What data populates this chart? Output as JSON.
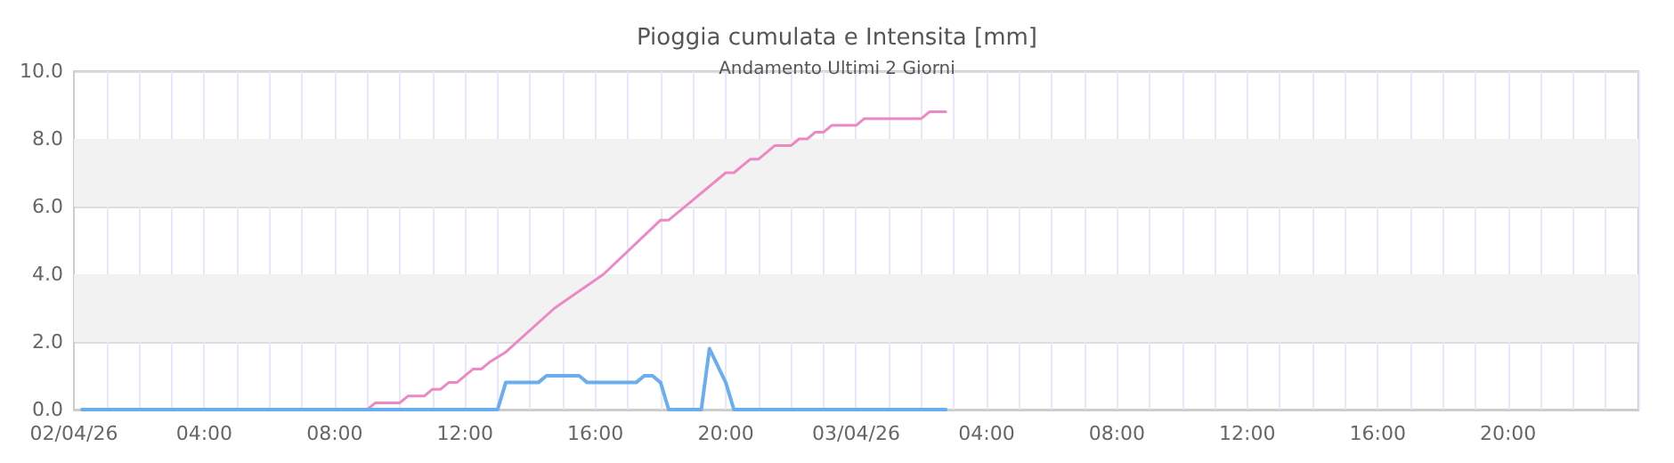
{
  "chart_data": {
    "type": "line",
    "title": "Pioggia cumulata e Intensita [mm]",
    "subtitle": "Andamento Ultimi 2 Giorni",
    "series": [
      {
        "color": "#ee88c4",
        "x": [
          "--04-02T00:15",
          "--04-02T09:00",
          "--04-02T09:15",
          "--04-02T10:00",
          "--04-02T10:15",
          "--04-02T10:45",
          "--04-02T11:00",
          "--04-02T11:15",
          "--04-02T11:30",
          "--04-02T11:45",
          "--04-02T12:15",
          "--04-02T12:30",
          "--04-02T12:45",
          "--04-02T13:15",
          "--04-02T14:45",
          "--04-02T16:15",
          "--04-02T18:00",
          "--04-02T18:15",
          "--04-02T20:00",
          "--04-02T20:15",
          "--04-02T20:45",
          "--04-02T21:00",
          "--04-02T21:30",
          "--04-02T22:00",
          "--04-02T22:15",
          "--04-02T22:30",
          "--04-02T22:45",
          "--04-02T23:00",
          "--04-02T23:15",
          "--04-03T00:00",
          "--04-03T00:15",
          "--04-03T02:00",
          "--04-03T02:15",
          "--04-03T02:45"
        ],
        "values": [
          0,
          0,
          0.2,
          0.2,
          0.4,
          0.4,
          0.6,
          0.6,
          0.8,
          0.8,
          1.2,
          1.2,
          1.4,
          1.7,
          3.0,
          4.0,
          5.6,
          5.6,
          7.0,
          7.0,
          7.4,
          7.4,
          7.8,
          7.8,
          8.0,
          8.0,
          8.2,
          8.2,
          8.4,
          8.4,
          8.6,
          8.6,
          8.8,
          8.8
        ]
      },
      {
        "color": "#6aaef0",
        "x": [
          "--04-02T00:15",
          "--04-02T13:00",
          "--04-02T13:15",
          "--04-02T14:15",
          "--04-02T14:30",
          "--04-02T15:30",
          "--04-02T15:45",
          "--04-02T17:15",
          "--04-02T17:30",
          "--04-02T17:45",
          "--04-02T18:00",
          "--04-02T18:15",
          "--04-02T19:15",
          "--04-02T19:30",
          "--04-02T20:00",
          "--04-02T20:15",
          "--04-03T02:45"
        ],
        "values": [
          0,
          0,
          0.8,
          0.8,
          1.0,
          1.0,
          0.8,
          0.8,
          1.0,
          1.0,
          0.8,
          0,
          0,
          1.8,
          0.8,
          0,
          0
        ]
      }
    ],
    "xlim": [
      "--04-02T00:00",
      "--04-04T00:00"
    ],
    "xticks": [
      {
        "value": "--04-02T00:00",
        "label": "02/04/26"
      },
      {
        "value": "--04-02T01:00",
        "label": null
      },
      {
        "value": "--04-02T02:00",
        "label": null
      },
      {
        "value": "--04-02T03:00",
        "label": null
      },
      {
        "value": "--04-02T04:00",
        "label": "04:00"
      },
      {
        "value": "--04-02T05:00",
        "label": null
      },
      {
        "value": "--04-02T06:00",
        "label": null
      },
      {
        "value": "--04-02T07:00",
        "label": null
      },
      {
        "value": "--04-02T08:00",
        "label": "08:00"
      },
      {
        "value": "--04-02T09:00",
        "label": null
      },
      {
        "value": "--04-02T10:00",
        "label": null
      },
      {
        "value": "--04-02T11:00",
        "label": null
      },
      {
        "value": "--04-02T12:00",
        "label": "12:00"
      },
      {
        "value": "--04-02T13:00",
        "label": null
      },
      {
        "value": "--04-02T14:00",
        "label": null
      },
      {
        "value": "--04-02T15:00",
        "label": null
      },
      {
        "value": "--04-02T16:00",
        "label": "16:00"
      },
      {
        "value": "--04-02T17:00",
        "label": null
      },
      {
        "value": "--04-02T18:00",
        "label": null
      },
      {
        "value": "--04-02T19:00",
        "label": null
      },
      {
        "value": "--04-02T20:00",
        "label": "20:00"
      },
      {
        "value": "--04-02T21:00",
        "label": null
      },
      {
        "value": "--04-02T22:00",
        "label": null
      },
      {
        "value": "--04-02T23:00",
        "label": null
      },
      {
        "value": "--04-03T00:00",
        "label": "03/04/26"
      },
      {
        "value": "--04-03T01:00",
        "label": null
      },
      {
        "value": "--04-03T02:00",
        "label": null
      },
      {
        "value": "--04-03T03:00",
        "label": null
      },
      {
        "value": "--04-03T04:00",
        "label": "04:00"
      },
      {
        "value": "--04-03T05:00",
        "label": null
      },
      {
        "value": "--04-03T06:00",
        "label": null
      },
      {
        "value": "--04-03T07:00",
        "label": null
      },
      {
        "value": "--04-03T08:00",
        "label": "08:00"
      },
      {
        "value": "--04-03T09:00",
        "label": null
      },
      {
        "value": "--04-03T10:00",
        "label": null
      },
      {
        "value": "--04-03T11:00",
        "label": null
      },
      {
        "value": "--04-03T12:00",
        "label": "12:00"
      },
      {
        "value": "--04-03T13:00",
        "label": null
      },
      {
        "value": "--04-03T14:00",
        "label": null
      },
      {
        "value": "--04-03T15:00",
        "label": null
      },
      {
        "value": "--04-03T16:00",
        "label": "16:00"
      },
      {
        "value": "--04-03T17:00",
        "label": null
      },
      {
        "value": "--04-03T18:00",
        "label": null
      },
      {
        "value": "--04-03T19:00",
        "label": null
      },
      {
        "value": "--04-03T20:00",
        "label": "20:00"
      },
      {
        "value": "--04-03T21:00",
        "label": null
      },
      {
        "value": "--04-03T22:00",
        "label": null
      },
      {
        "value": "--04-03T23:00",
        "label": null
      }
    ],
    "ylim": [
      0,
      10
    ],
    "yticks": [
      {
        "value": 0,
        "label": "0.0"
      },
      {
        "value": 2,
        "label": "2.0"
      },
      {
        "value": 4,
        "label": "4.0"
      },
      {
        "value": 6,
        "label": "6.0"
      },
      {
        "value": 8,
        "label": "8.0"
      },
      {
        "value": 10,
        "label": "10.0"
      }
    ],
    "bands": [
      {
        "axis": "y",
        "from": 2,
        "to": 4,
        "color": "#f2f2f2"
      },
      {
        "axis": "y",
        "from": 6,
        "to": 8,
        "color": "#f2f2f2"
      }
    ],
    "grid": true,
    "marker": "none"
  }
}
